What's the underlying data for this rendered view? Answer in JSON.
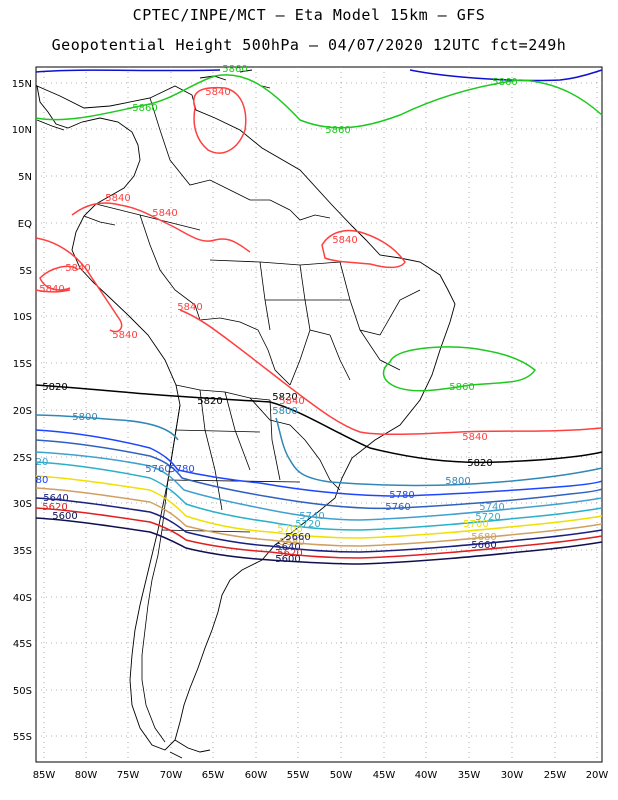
{
  "header": {
    "line1": "CPTEC/INPE/MCT –  Eta Model 15km – GFS",
    "line2": "Geopotential Height 500hPa – 04/07/2020 12UTC fct=249h"
  },
  "axes": {
    "lon_labels": [
      "85W",
      "80W",
      "75W",
      "70W",
      "65W",
      "60W",
      "55W",
      "50W",
      "45W",
      "40W",
      "35W",
      "30W",
      "25W",
      "20W"
    ],
    "lat_labels": [
      "15N",
      "10N",
      "5N",
      "EQ",
      "5S",
      "10S",
      "15S",
      "20S",
      "25S",
      "30S",
      "35S",
      "40S",
      "45S",
      "50S",
      "55S"
    ]
  },
  "colors": {
    "c5860": "#1ec81e",
    "c5840": "#ff4040",
    "c5820": "#000000",
    "c5800": "#2f88b8",
    "c5780": "#1e46ff",
    "c5760": "#3060c0",
    "c5740": "#40a0d0",
    "c5720": "#2ab0c8",
    "c5700": "#f0e000",
    "c5680": "#d0a060",
    "c5660": "#1a2080",
    "c5640": "#1a2080",
    "c5620": "#e02020",
    "c5600": "#101050",
    "top_blue": "#1010d0"
  },
  "contour_labels": [
    {
      "text": "5860",
      "color": "c5860"
    },
    {
      "text": "5860",
      "color": "c5860"
    },
    {
      "text": "5860",
      "color": "c5860"
    },
    {
      "text": "5860",
      "color": "c5860"
    },
    {
      "text": "5860",
      "color": "c5860"
    },
    {
      "text": "5840",
      "color": "c5840"
    },
    {
      "text": "5840",
      "color": "c5840"
    },
    {
      "text": "5840",
      "color": "c5840"
    },
    {
      "text": "5840",
      "color": "c5840"
    },
    {
      "text": "5840",
      "color": "c5840"
    },
    {
      "text": "5840",
      "color": "c5840"
    },
    {
      "text": "5840",
      "color": "c5840"
    },
    {
      "text": "5840",
      "color": "c5840"
    },
    {
      "text": "5840",
      "color": "c5840"
    },
    {
      "text": "5820",
      "color": "c5820"
    },
    {
      "text": "5820",
      "color": "c5820"
    },
    {
      "text": "5820",
      "color": "c5820"
    },
    {
      "text": "5800",
      "color": "c5800"
    },
    {
      "text": "5800",
      "color": "c5800"
    },
    {
      "text": "5800",
      "color": "c5800"
    },
    {
      "text": "5780",
      "color": "c5780"
    },
    {
      "text": "5780",
      "color": "c5780"
    },
    {
      "text": "5760",
      "color": "c5760"
    },
    {
      "text": "5760",
      "color": "c5760"
    },
    {
      "text": "5740",
      "color": "c5740"
    },
    {
      "text": "5740",
      "color": "c5740"
    },
    {
      "text": "5720",
      "color": "c5720"
    },
    {
      "text": "5720",
      "color": "c5720"
    },
    {
      "text": "5700",
      "color": "c5700"
    },
    {
      "text": "5700",
      "color": "c5700"
    },
    {
      "text": "5680",
      "color": "c5680"
    },
    {
      "text": "5680",
      "color": "c5680"
    },
    {
      "text": "5660",
      "color": "c5660"
    },
    {
      "text": "5660",
      "color": "c5660"
    },
    {
      "text": "5640",
      "color": "c5640"
    },
    {
      "text": "5640",
      "color": "c5640"
    },
    {
      "text": "5620",
      "color": "c5620"
    },
    {
      "text": "5620",
      "color": "c5620"
    },
    {
      "text": "5600",
      "color": "c5600"
    },
    {
      "text": "5600",
      "color": "c5600"
    },
    {
      "text": "20",
      "color": "c5740"
    },
    {
      "text": "80",
      "color": "c5780"
    },
    {
      "text": "5820",
      "color": "c5820"
    },
    {
      "text": "5840",
      "color": "c5840"
    }
  ]
}
